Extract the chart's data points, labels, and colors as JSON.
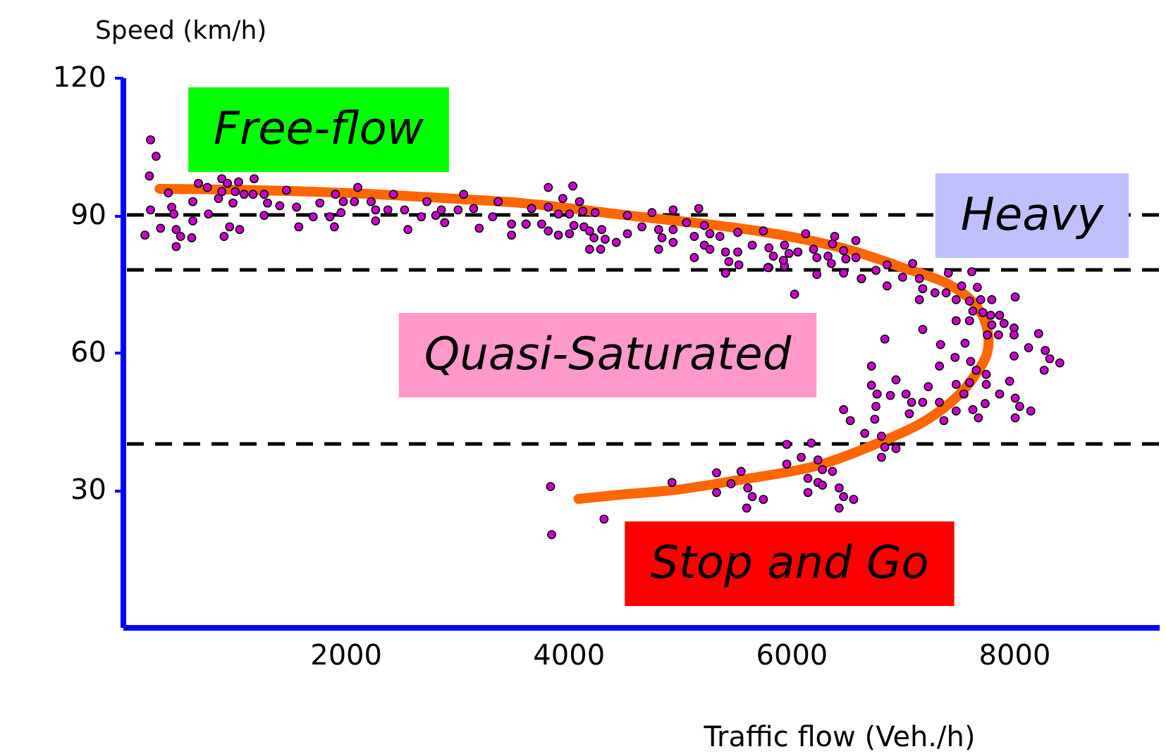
{
  "chart_data": {
    "type": "scatter",
    "xlabel": "Traffic flow (Veh./h)",
    "ylabel": "Speed (km/h)",
    "xlim": [
      0,
      9300
    ],
    "ylim": [
      0,
      120
    ],
    "xticks": [
      2000,
      4000,
      6000,
      8000
    ],
    "yticks": [
      30,
      60,
      90,
      120
    ],
    "grid": false,
    "tick_labels": "xy",
    "series": [
      {
        "type": "line",
        "color": "#ff6600",
        "x": [
          330,
          1000,
          2000,
          3000,
          3580,
          4500,
          5700,
          6500,
          7000,
          7400,
          7630,
          7750,
          7760,
          7650,
          7500,
          7200,
          6810,
          6240,
          5500,
          4970,
          4500,
          4090
        ],
        "values": [
          95.7,
          95.5,
          94.8,
          93.5,
          92.6,
          90,
          86.5,
          82.5,
          78.5,
          75,
          71,
          66,
          60,
          55,
          50.6,
          45,
          40.5,
          35.3,
          32,
          30,
          29,
          28
        ]
      },
      {
        "marker": "circle",
        "color": "#cc00cc",
        "x": [
          3840,
          3850,
          4320,
          4930,
          5330,
          5550,
          5460,
          5330,
          5610,
          5650,
          5750,
          5600,
          5960,
          5960,
          6090,
          6180,
          6240,
          6280,
          6370,
          6150,
          6240,
          6280,
          6150,
          6430,
          6470,
          6560,
          6430,
          6470,
          6530,
          6660,
          6810,
          6840,
          6810,
          6940,
          6720,
          6840,
          6720,
          6770,
          6890,
          6940,
          6760,
          6750,
          7030,
          7080,
          7060,
          7180,
          7230,
          7180,
          7330,
          7340,
          7470,
          7480,
          7550,
          7330,
          7370,
          7480,
          7560,
          7610,
          7660,
          7750,
          7750,
          7600,
          7740,
          7630,
          7680,
          7870,
          7960,
          8010,
          8050,
          8150,
          8010,
          8130,
          8220,
          8280,
          8320,
          8410,
          8270,
          8000,
          8000,
          8000,
          7910,
          7860,
          7870,
          7800,
          7760,
          7790,
          7720,
          7630,
          7600,
          7480,
          7700,
          7800,
          8010,
          7670,
          7530,
          7600,
          7480,
          7390,
          7290,
          7150,
          7180,
          7150,
          7000,
          6860,
          7410,
          7620,
          7090,
          6860,
          6760,
          6630,
          6030,
          6230,
          5410,
          5800,
          5940,
          3820,
          4040,
          3950,
          4100,
          3670,
          3820,
          3910,
          4010,
          4130,
          4240,
          3620,
          3760,
          3820,
          3910,
          4010,
          4050,
          4140,
          4190,
          4300,
          4230,
          4330,
          4190,
          4290,
          4430,
          4530,
          4530,
          4750,
          4940,
          4660,
          4810,
          4940,
          4840,
          4940,
          4810,
          5170,
          5060,
          5220,
          5270,
          5360,
          5130,
          5220,
          5270,
          5130,
          5410,
          5520,
          5440,
          5530,
          5410,
          5520,
          5650,
          5750,
          5800,
          5840,
          5940,
          5980,
          6060,
          5930,
          5790,
          6130,
          6200,
          6230,
          6330,
          6360,
          6390,
          6370,
          6470,
          6490,
          6580,
          6580,
          6630,
          6470,
          250,
          300,
          240,
          410,
          250,
          200,
          340,
          440,
          460,
          480,
          520,
          480,
          620,
          630,
          630,
          680,
          760,
          770,
          860,
          890,
          890,
          910,
          960,
          990,
          1010,
          1040,
          1050,
          940,
          1090,
          1170,
          1180,
          1270,
          1300,
          1270,
          1410,
          1470,
          1560,
          1580,
          1710,
          1770,
          1860,
          1900,
          1910,
          1980,
          1960,
          2080,
          2110,
          2230,
          2270,
          2270,
          2380,
          2430,
          2530,
          2560,
          2680,
          2730,
          2810,
          2860,
          2890,
          3010,
          3060,
          3150,
          3200,
          3320,
          3370,
          3490,
          3490,
          3620,
          3670
        ],
        "values": [
          30.7,
          20.2,
          23.6,
          31.6,
          33.7,
          34,
          31.3,
          29.4,
          30.4,
          28.5,
          27.9,
          26,
          35.6,
          39.9,
          37.1,
          40.2,
          36.5,
          34.4,
          34,
          32.5,
          31.6,
          31,
          29.4,
          30.4,
          28.5,
          27.9,
          26,
          47.5,
          45.1,
          42.3,
          41.7,
          39.3,
          37.1,
          39,
          57,
          62.9,
          52.8,
          50.9,
          50.6,
          54,
          48.2,
          45.4,
          50.9,
          49.1,
          46.6,
          49.1,
          52.5,
          65,
          57,
          61.7,
          58.9,
          53,
          50.9,
          49.1,
          45.1,
          47.2,
          62,
          58,
          56.1,
          55.2,
          53,
          53.4,
          48.8,
          47.5,
          45.7,
          50.9,
          53.7,
          50,
          48.2,
          47.2,
          45.7,
          61,
          64.1,
          60.4,
          58.6,
          57.7,
          56.1,
          59.2,
          65.3,
          63.8,
          66.3,
          63.8,
          68.1,
          66,
          63.8,
          68.1,
          68.7,
          69,
          66.9,
          66.9,
          71.5,
          71.5,
          72.1,
          74.2,
          74.5,
          71.2,
          71.5,
          73,
          73,
          71.5,
          73.9,
          76.1,
          76.4,
          74.5,
          77.3,
          77.6,
          79.4,
          79.1,
          77.9,
          76.1,
          72.7,
          77,
          77.3,
          78.5,
          78.8,
          96,
          96.3,
          93.6,
          92.9,
          91.4,
          91.7,
          90.2,
          90.2,
          90.8,
          90.5,
          88,
          88,
          86.5,
          85.6,
          85.9,
          87.7,
          87.4,
          86.5,
          86.8,
          85,
          84.7,
          82.5,
          82.5,
          84,
          85.9,
          89.9,
          90.5,
          91.1,
          87.4,
          86.8,
          86.8,
          85,
          84,
          82.5,
          91.4,
          88.3,
          87.7,
          85.9,
          85.3,
          85.3,
          83.4,
          82.5,
          80.7,
          81.9,
          81.9,
          79.8,
          79.1,
          77.3,
          86.2,
          83.4,
          86.5,
          82.8,
          81,
          83.4,
          81.6,
          81.9,
          80.1,
          78.5,
          85.9,
          82.5,
          80.7,
          81,
          79.4,
          85.3,
          83.7,
          82.2,
          80.4,
          84.4,
          80.7,
          76.1,
          77.3,
          106.4,
          102.8,
          98.5,
          94.8,
          91.1,
          85.6,
          87.1,
          91.7,
          90.2,
          86.8,
          85.3,
          83.1,
          85,
          88.7,
          92.9,
          96.9,
          96,
          90.2,
          93.6,
          95.1,
          97.9,
          85.3,
          87.4,
          92.6,
          95.1,
          97.2,
          86.8,
          96.9,
          94.5,
          94.5,
          97.9,
          94.5,
          92.6,
          89.9,
          92,
          95.4,
          91.7,
          87.4,
          89.6,
          92.6,
          89.6,
          87.4,
          94.5,
          92.9,
          90.5,
          92.9,
          96,
          92.9,
          91.1,
          88.7,
          91.1,
          94.5,
          91.1,
          86.8,
          89.6,
          92.9,
          89.9,
          91.1,
          88.3,
          91.1,
          94.5,
          91.4,
          87.1,
          89.6,
          92.9,
          88,
          85.6,
          88,
          91.4
        ]
      }
    ],
    "ref_lines": [
      {
        "axis": "y",
        "value": 90,
        "color": "#000000",
        "line_style": "dashed"
      },
      {
        "axis": "y",
        "value": 78,
        "color": "#000000",
        "line_style": "dashed"
      },
      {
        "axis": "y",
        "value": 40,
        "color": "#000000",
        "line_style": "dashed"
      }
    ],
    "annotations": [
      "Free-flow",
      "Heavy",
      "Quasi-Saturated",
      "Stop and Go"
    ]
  }
}
